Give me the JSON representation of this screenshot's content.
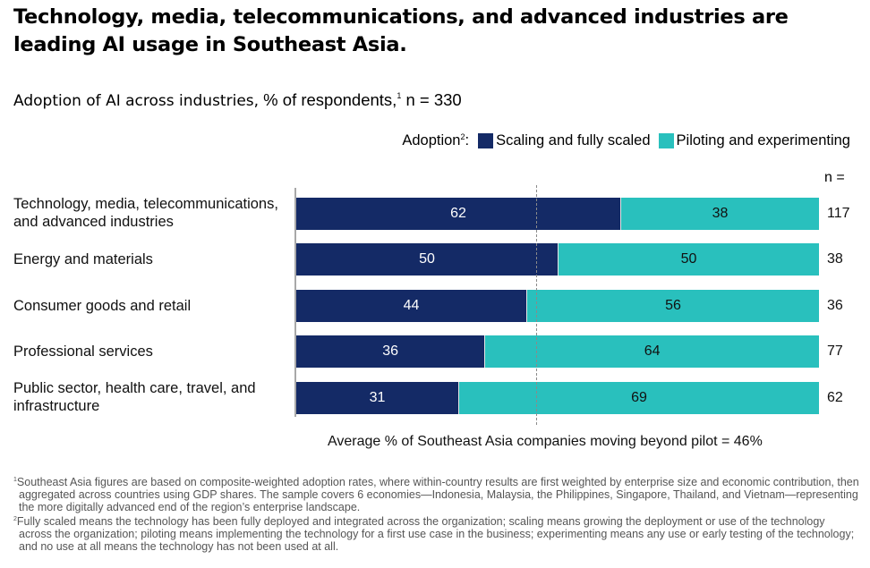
{
  "header": {
    "title": "Technology, media, telecommunications, and advanced industries are leading AI usage in Southeast Asia.",
    "subtitle_bold": "Adoption of AI across industries,",
    "subtitle_rest": " % of respondents,",
    "subtitle_sup": "1",
    "subtitle_n": " n = 330"
  },
  "legend": {
    "title": "Adoption",
    "title_sup": "2",
    "title_suffix": ":",
    "items": [
      {
        "label": "Scaling and fully scaled",
        "color": "#142a66"
      },
      {
        "label": "Piloting and experimenting",
        "color": "#29c0bd"
      }
    ]
  },
  "n_header": "n =",
  "average_label": "Average % of Southeast Asia companies moving beyond pilot = 46%",
  "footnotes": [
    {
      "sup": "1",
      "text": "Southeast Asia figures are based on composite-weighted adoption rates, where within-country results are first weighted by enterprise size and economic contribution, then aggregated across countries using GDP shares. The sample covers 6 economies—Indonesia, Malaysia, the Philippines, Singapore, Thailand, and Vietnam—representing the more digitally advanced end of the region’s enterprise landscape."
    },
    {
      "sup": "2",
      "text": "Fully scaled means the technology has been fully deployed and integrated across the organization; scaling means growing the deployment or use of the technology across the organization; piloting means implementing the technology for a first use case in the business; experimenting means any use or early testing of the technology; and no use at all means the technology has not been used at all."
    }
  ],
  "chart_data": {
    "type": "bar",
    "orientation": "horizontal",
    "stacked": true,
    "title": "Adoption of AI across industries, % of respondents, n = 330",
    "xlabel": "",
    "ylabel": "",
    "xlim": [
      0,
      100
    ],
    "grid": false,
    "legend_position": "top-right",
    "categories": [
      "Technology, media, telecommunications, and advanced industries",
      "Energy and materials",
      "Consumer goods and retail",
      "Professional services",
      "Public sector, health care, travel, and infrastructure"
    ],
    "series": [
      {
        "name": "Scaling and fully scaled",
        "color": "#142a66",
        "values": [
          62,
          50,
          44,
          36,
          31
        ]
      },
      {
        "name": "Piloting and experimenting",
        "color": "#29c0bd",
        "values": [
          38,
          50,
          56,
          64,
          69
        ]
      }
    ],
    "n_values": [
      117,
      38,
      36,
      77,
      62
    ],
    "reference_line": {
      "value": 46,
      "style": "dashed",
      "label": "Average % of Southeast Asia companies moving beyond pilot = 46%"
    }
  }
}
